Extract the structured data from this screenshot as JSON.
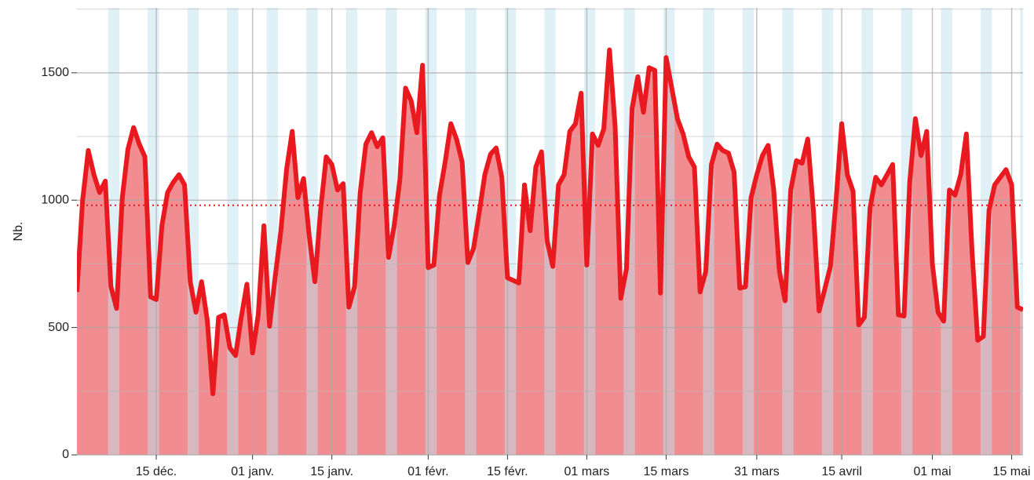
{
  "chart_data": {
    "type": "area",
    "y_label": "Nb.",
    "x": [
      0,
      1,
      2,
      3,
      4,
      5,
      6,
      7,
      8,
      9,
      10,
      11,
      12,
      13,
      14,
      15,
      16,
      17,
      18,
      19,
      20,
      21,
      22,
      23,
      24,
      25,
      26,
      27,
      28,
      29,
      30,
      31,
      32,
      33,
      34,
      35,
      36,
      37,
      38,
      39,
      40,
      41,
      42,
      43,
      44,
      45,
      46,
      47,
      48,
      49,
      50,
      51,
      52,
      53,
      54,
      55,
      56,
      57,
      58,
      59,
      60,
      61,
      62,
      63,
      64,
      65,
      66,
      67,
      68,
      69,
      70,
      71,
      72,
      73,
      74,
      75,
      76,
      77,
      78,
      79,
      80,
      81,
      82,
      83,
      84,
      85,
      86,
      87,
      88,
      89,
      90,
      91,
      92,
      93,
      94,
      95,
      96,
      97,
      98,
      99,
      100,
      101,
      102,
      103,
      104,
      105,
      106,
      107,
      108,
      109,
      110,
      111,
      112,
      113,
      114,
      115,
      116,
      117,
      118,
      119,
      120,
      121,
      122,
      123,
      124,
      125,
      126,
      127,
      128,
      129,
      130,
      131,
      132,
      133,
      134,
      135,
      136,
      137,
      138,
      139,
      140,
      141,
      142,
      143,
      144,
      145,
      146,
      147,
      148,
      149,
      150,
      151,
      152,
      153,
      154,
      155,
      156,
      157,
      158,
      159,
      160,
      161,
      162,
      163,
      164,
      165,
      166,
      167
    ],
    "values": [
      640,
      1000,
      1195,
      1100,
      1030,
      1075,
      660,
      575,
      1010,
      1200,
      1285,
      1220,
      1170,
      620,
      610,
      900,
      1030,
      1070,
      1100,
      1060,
      680,
      560,
      680,
      530,
      240,
      540,
      550,
      420,
      390,
      540,
      670,
      400,
      550,
      900,
      505,
      700,
      880,
      1120,
      1270,
      1010,
      1085,
      860,
      680,
      960,
      1170,
      1140,
      1040,
      1065,
      580,
      660,
      1030,
      1220,
      1265,
      1210,
      1245,
      775,
      900,
      1080,
      1440,
      1390,
      1265,
      1530,
      735,
      745,
      1020,
      1150,
      1300,
      1240,
      1150,
      755,
      810,
      950,
      1100,
      1180,
      1205,
      1090,
      695,
      685,
      675,
      1060,
      880,
      1130,
      1190,
      840,
      740,
      1060,
      1100,
      1270,
      1300,
      1420,
      745,
      1260,
      1215,
      1280,
      1590,
      1290,
      615,
      730,
      1360,
      1485,
      1345,
      1520,
      1510,
      635,
      1560,
      1440,
      1320,
      1260,
      1170,
      1130,
      640,
      720,
      1140,
      1220,
      1195,
      1185,
      1110,
      655,
      660,
      1010,
      1100,
      1175,
      1215,
      1040,
      720,
      605,
      1040,
      1155,
      1145,
      1240,
      960,
      565,
      650,
      740,
      1000,
      1300,
      1100,
      1035,
      510,
      540,
      970,
      1090,
      1060,
      1100,
      1140,
      550,
      545,
      1070,
      1320,
      1175,
      1270,
      750,
      560,
      525,
      1040,
      1020,
      1100,
      1260,
      800,
      450,
      465,
      960,
      1060,
      1090,
      1120,
      1060,
      580,
      570
    ],
    "color": "#e8191f",
    "fill_color": "#f0878b",
    "band_color": "#bfe3f0",
    "weekends": [
      6,
      13,
      20,
      27,
      34,
      41,
      48,
      55,
      62,
      69,
      76,
      83,
      90,
      97,
      104,
      111,
      118,
      125,
      132,
      139,
      146,
      153,
      160,
      167
    ],
    "mean_line": 980,
    "xlim": [
      0,
      167
    ],
    "xticks": [
      {
        "value": 14,
        "label": "15 déc."
      },
      {
        "value": 31,
        "label": "01 janv."
      },
      {
        "value": 45,
        "label": "15 janv."
      },
      {
        "value": 62,
        "label": "01 févr."
      },
      {
        "value": 76,
        "label": "15 févr."
      },
      {
        "value": 90,
        "label": "01 mars"
      },
      {
        "value": 104,
        "label": "15 mars"
      },
      {
        "value": 120,
        "label": "31 mars"
      },
      {
        "value": 135,
        "label": "15 avril"
      },
      {
        "value": 151,
        "label": "01 mai"
      },
      {
        "value": 165,
        "label": "15 mai"
      }
    ],
    "ylim": [
      0,
      1755
    ],
    "yticks": [
      0,
      500,
      1000,
      1500
    ],
    "yminor": [
      250,
      750,
      1250,
      1750
    ],
    "grid": true
  }
}
